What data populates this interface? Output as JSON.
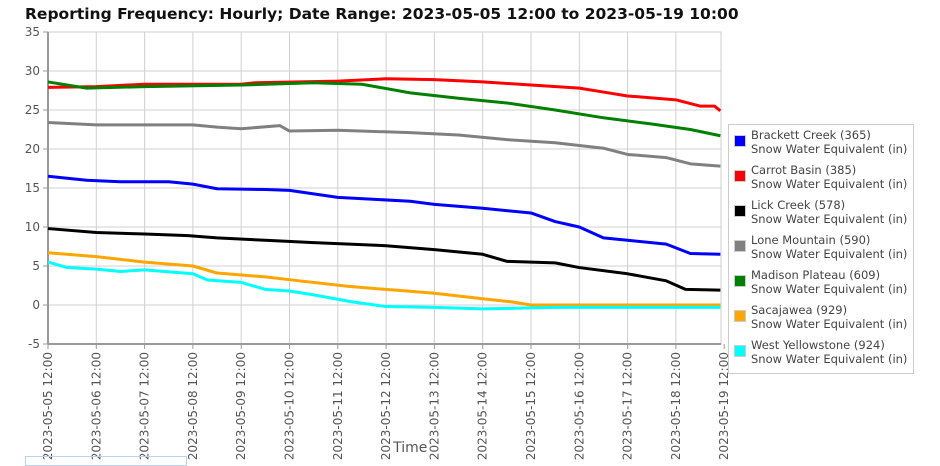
{
  "chart_data": {
    "type": "line",
    "title": "Reporting Frequency: Hourly; Date Range: 2023-05-05 12:00 to 2023-05-19 10:00",
    "xlabel": "Time",
    "ylabel": "",
    "ylim": [
      -5,
      35
    ],
    "yticks": [
      "35",
      "30",
      "25",
      "20",
      "15",
      "10",
      "5",
      "0",
      "-5"
    ],
    "xticks": [
      "2023-05-05 12:00",
      "2023-05-06 12:00",
      "2023-05-07 12:00",
      "2023-05-08 12:00",
      "2023-05-09 12:00",
      "2023-05-10 12:00",
      "2023-05-11 12:00",
      "2023-05-12 12:00",
      "2023-05-13 12:00",
      "2023-05-14 12:00",
      "2023-05-15 12:00",
      "2023-05-16 12:00",
      "2023-05-17 12:00",
      "2023-05-18 12:00",
      "2023-05-19 12:00"
    ],
    "x_unit": "days since 2023-05-05 12:00",
    "grid": true,
    "legend_position": "right",
    "series": [
      {
        "name": "Brackett Creek (365)",
        "sub": "Snow Water Equivalent (in)",
        "color": "#0000ff",
        "points": [
          [
            0,
            16.5
          ],
          [
            0.8,
            16.0
          ],
          [
            1.5,
            15.8
          ],
          [
            2.5,
            15.8
          ],
          [
            3,
            15.5
          ],
          [
            3.5,
            14.9
          ],
          [
            4.5,
            14.8
          ],
          [
            5,
            14.7
          ],
          [
            6,
            13.8
          ],
          [
            7.5,
            13.3
          ],
          [
            8,
            12.9
          ],
          [
            9,
            12.4
          ],
          [
            10,
            11.8
          ],
          [
            10.5,
            10.7
          ],
          [
            11,
            10.0
          ],
          [
            11.5,
            8.6
          ],
          [
            12,
            8.3
          ],
          [
            12.8,
            7.8
          ],
          [
            13.3,
            6.6
          ],
          [
            13.92,
            6.5
          ]
        ]
      },
      {
        "name": "Carrot Basin (385)",
        "sub": "Snow Water Equivalent (in)",
        "color": "#ff0000",
        "points": [
          [
            0,
            27.9
          ],
          [
            1,
            28.0
          ],
          [
            2,
            28.3
          ],
          [
            4,
            28.3
          ],
          [
            4.3,
            28.5
          ],
          [
            6,
            28.7
          ],
          [
            7,
            29.0
          ],
          [
            8,
            28.9
          ],
          [
            9,
            28.6
          ],
          [
            10,
            28.2
          ],
          [
            11,
            27.8
          ],
          [
            11.5,
            27.3
          ],
          [
            12,
            26.8
          ],
          [
            13,
            26.3
          ],
          [
            13.5,
            25.5
          ],
          [
            13.8,
            25.5
          ],
          [
            13.92,
            24.9
          ]
        ]
      },
      {
        "name": "Lick Creek (578)",
        "sub": "Snow Water Equivalent (in)",
        "color": "#000000",
        "points": [
          [
            0,
            9.8
          ],
          [
            1,
            9.3
          ],
          [
            2,
            9.1
          ],
          [
            2.9,
            8.9
          ],
          [
            3.5,
            8.6
          ],
          [
            4.5,
            8.3
          ],
          [
            5.5,
            8.0
          ],
          [
            7,
            7.6
          ],
          [
            8,
            7.1
          ],
          [
            9,
            6.5
          ],
          [
            9.5,
            5.6
          ],
          [
            10.5,
            5.4
          ],
          [
            11,
            4.8
          ],
          [
            12,
            4.0
          ],
          [
            12.8,
            3.1
          ],
          [
            13.2,
            2.0
          ],
          [
            13.92,
            1.9
          ]
        ]
      },
      {
        "name": "Lone Mountain (590)",
        "sub": "Snow Water Equivalent (in)",
        "color": "#808080",
        "points": [
          [
            0,
            23.4
          ],
          [
            1,
            23.1
          ],
          [
            3,
            23.1
          ],
          [
            3.5,
            22.8
          ],
          [
            4,
            22.6
          ],
          [
            4.8,
            23.0
          ],
          [
            5,
            22.3
          ],
          [
            6,
            22.4
          ],
          [
            7.5,
            22.1
          ],
          [
            8.5,
            21.8
          ],
          [
            9.5,
            21.2
          ],
          [
            10.5,
            20.8
          ],
          [
            11.5,
            20.1
          ],
          [
            12,
            19.3
          ],
          [
            12.8,
            18.9
          ],
          [
            13.3,
            18.1
          ],
          [
            13.92,
            17.8
          ]
        ]
      },
      {
        "name": "Madison Plateau (609)",
        "sub": "Snow Water Equivalent (in)",
        "color": "#008000",
        "points": [
          [
            0,
            28.6
          ],
          [
            0.8,
            27.8
          ],
          [
            2,
            28.0
          ],
          [
            4,
            28.2
          ],
          [
            5.5,
            28.5
          ],
          [
            6.5,
            28.3
          ],
          [
            7.5,
            27.2
          ],
          [
            8.5,
            26.5
          ],
          [
            9.5,
            25.9
          ],
          [
            10.5,
            25.0
          ],
          [
            11.5,
            24.0
          ],
          [
            12.5,
            23.2
          ],
          [
            13.3,
            22.5
          ],
          [
            13.92,
            21.7
          ]
        ]
      },
      {
        "name": "Sacajawea (929)",
        "sub": "Snow Water Equivalent (in)",
        "color": "#ffa500",
        "points": [
          [
            0,
            6.7
          ],
          [
            1,
            6.2
          ],
          [
            2,
            5.5
          ],
          [
            3,
            5.0
          ],
          [
            3.5,
            4.1
          ],
          [
            4.5,
            3.6
          ],
          [
            5.2,
            3.1
          ],
          [
            6.2,
            2.4
          ],
          [
            7.2,
            1.9
          ],
          [
            8,
            1.5
          ],
          [
            9,
            0.8
          ],
          [
            9.6,
            0.4
          ],
          [
            10,
            0.0
          ],
          [
            13.92,
            0.0
          ]
        ]
      },
      {
        "name": "West Yellowstone (924)",
        "sub": "Snow Water Equivalent (in)",
        "color": "#00ffff",
        "points": [
          [
            0,
            5.5
          ],
          [
            0.4,
            4.8
          ],
          [
            1,
            4.6
          ],
          [
            1.5,
            4.3
          ],
          [
            2,
            4.5
          ],
          [
            3,
            4.0
          ],
          [
            3.3,
            3.2
          ],
          [
            4,
            2.9
          ],
          [
            4.5,
            2.0
          ],
          [
            5,
            1.8
          ],
          [
            5.5,
            1.3
          ],
          [
            6.3,
            0.4
          ],
          [
            7,
            -0.2
          ],
          [
            8,
            -0.3
          ],
          [
            9,
            -0.5
          ],
          [
            10.5,
            -0.3
          ],
          [
            13.92,
            -0.3
          ]
        ]
      }
    ]
  }
}
